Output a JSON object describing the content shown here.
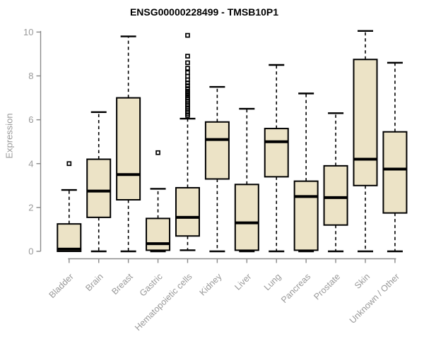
{
  "chart_data": {
    "type": "boxplot",
    "title": "ENSG00000228499 - TMSB10P1",
    "ylabel": "Expression",
    "xlabel": "",
    "ylim": [
      0,
      10
    ],
    "yticks": [
      0,
      2,
      4,
      6,
      8,
      10
    ],
    "grid": false,
    "legend": "none",
    "colors": {
      "box_fill": "#ece3c6",
      "box_border": "#000000",
      "median": "#000000",
      "whisker": "#000000",
      "axis_line": "#8a8a8a",
      "tick_text": "#999999",
      "title_text": "#000000"
    },
    "boxes": [
      {
        "category": "Bladder",
        "low": 0,
        "q1": 0,
        "median": 0.1,
        "q3": 1.25,
        "high": 2.8,
        "outliers": [
          4.0
        ]
      },
      {
        "category": "Brain",
        "low": 0,
        "q1": 1.55,
        "median": 2.75,
        "q3": 4.2,
        "high": 6.35,
        "outliers": []
      },
      {
        "category": "Breast",
        "low": 0,
        "q1": 2.35,
        "median": 3.5,
        "q3": 7.0,
        "high": 9.8,
        "outliers": []
      },
      {
        "category": "Gastric",
        "low": 0,
        "q1": 0.05,
        "median": 0.35,
        "q3": 1.5,
        "high": 2.85,
        "outliers": [
          4.5
        ]
      },
      {
        "category": "Hematopoietic cells",
        "low": 0.05,
        "q1": 0.7,
        "median": 1.55,
        "q3": 2.9,
        "high": 6.05,
        "outliers": [
          6.2,
          6.28,
          6.36,
          6.44,
          6.52,
          6.6,
          6.68,
          6.76,
          6.84,
          6.92,
          7.0,
          7.1,
          7.2,
          7.3,
          7.42,
          7.55,
          7.68,
          7.82,
          7.98,
          8.15,
          8.35,
          8.6,
          8.9,
          9.85
        ]
      },
      {
        "category": "Kidney",
        "low": 0,
        "q1": 3.3,
        "median": 5.1,
        "q3": 5.9,
        "high": 7.5,
        "outliers": []
      },
      {
        "category": "Liver",
        "low": 0,
        "q1": 0.05,
        "median": 1.3,
        "q3": 3.05,
        "high": 6.5,
        "outliers": []
      },
      {
        "category": "Lung",
        "low": 0,
        "q1": 3.4,
        "median": 5.0,
        "q3": 5.6,
        "high": 8.5,
        "outliers": []
      },
      {
        "category": "Pancreas",
        "low": 0,
        "q1": 0.05,
        "median": 2.5,
        "q3": 3.2,
        "high": 7.2,
        "outliers": []
      },
      {
        "category": "Prostate",
        "low": 0,
        "q1": 1.2,
        "median": 2.45,
        "q3": 3.9,
        "high": 6.3,
        "outliers": []
      },
      {
        "category": "Skin",
        "low": 0,
        "q1": 3.0,
        "median": 4.2,
        "q3": 8.75,
        "high": 10.05,
        "outliers": []
      },
      {
        "category": "Unknown / Other",
        "low": 0,
        "q1": 1.75,
        "median": 3.75,
        "q3": 5.45,
        "high": 8.6,
        "outliers": []
      }
    ]
  }
}
